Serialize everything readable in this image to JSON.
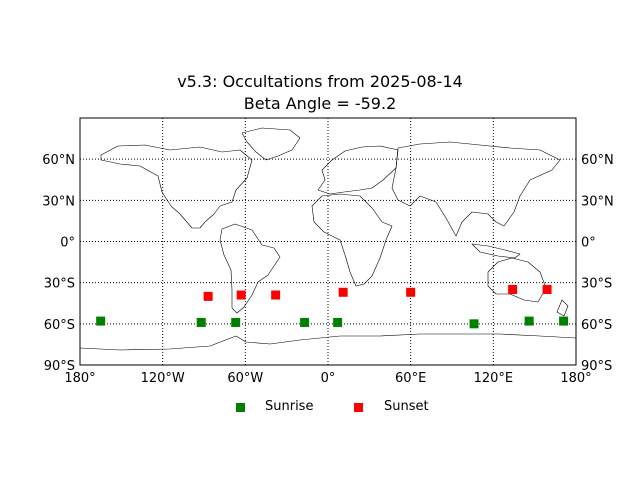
{
  "chart_data": {
    "type": "scatter",
    "title": "v5.3: Occultations from 2025-08-14",
    "subtitle": "Beta Angle = -59.2",
    "xlim": [
      -180,
      180
    ],
    "ylim": [
      -90,
      90
    ],
    "grid": true,
    "x_ticks": [
      {
        "value": -180,
        "label": "180°"
      },
      {
        "value": -120,
        "label": "120°W"
      },
      {
        "value": -60,
        "label": "60°W"
      },
      {
        "value": 0,
        "label": "0°"
      },
      {
        "value": 60,
        "label": "60°E"
      },
      {
        "value": 120,
        "label": "120°E"
      },
      {
        "value": 180,
        "label": "180°"
      }
    ],
    "y_ticks": [
      {
        "value": 60,
        "label": "60°N"
      },
      {
        "value": 30,
        "label": "30°N"
      },
      {
        "value": 0,
        "label": "0°"
      },
      {
        "value": -30,
        "label": "30°S"
      },
      {
        "value": -60,
        "label": "60°S"
      },
      {
        "value": -90,
        "label": "90°S"
      }
    ],
    "legend_position": "bottom-center",
    "series": [
      {
        "name": "Sunrise",
        "color": "#008000",
        "marker": "square",
        "points": [
          {
            "lon": -165,
            "lat": -58
          },
          {
            "lon": -92,
            "lat": -59
          },
          {
            "lon": -67,
            "lat": -59
          },
          {
            "lon": -17,
            "lat": -59
          },
          {
            "lon": 7,
            "lat": -59
          },
          {
            "lon": 106,
            "lat": -60
          },
          {
            "lon": 146,
            "lat": -58
          },
          {
            "lon": 171,
            "lat": -58
          }
        ]
      },
      {
        "name": "Sunset",
        "color": "#ff0000",
        "marker": "square",
        "points": [
          {
            "lon": -87,
            "lat": -40
          },
          {
            "lon": -63,
            "lat": -39
          },
          {
            "lon": -38,
            "lat": -39
          },
          {
            "lon": 11,
            "lat": -37
          },
          {
            "lon": 60,
            "lat": -37
          },
          {
            "lon": 134,
            "lat": -35
          },
          {
            "lon": 159,
            "lat": -35
          }
        ]
      }
    ]
  }
}
